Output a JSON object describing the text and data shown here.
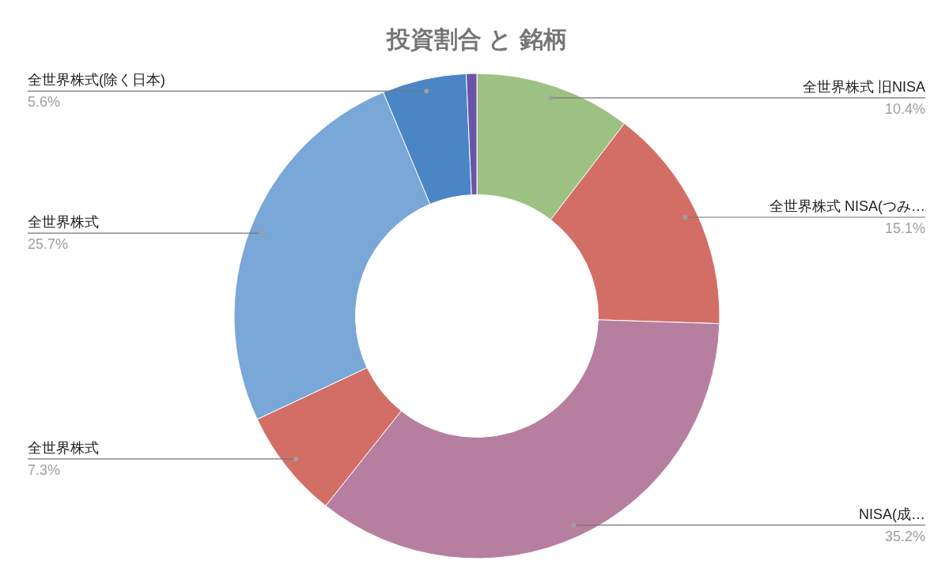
{
  "chart_data": {
    "type": "donut",
    "title": "投資割合 と 銘柄",
    "categories": [
      "全世界株式 旧NISA",
      "全世界株式 NISA(つみ…",
      "NISA(成…",
      "全世界株式",
      "全世界株式",
      "全世界株式(除く日本)",
      null
    ],
    "values": [
      10.4,
      15.1,
      35.2,
      7.3,
      25.7,
      5.6,
      0.7
    ],
    "colors": [
      "#9dc183",
      "#d36e67",
      "#b77f9f",
      "#d36e67",
      "#78a7d8",
      "#4a86c5",
      "#6a55a8"
    ],
    "value_labels": [
      "10.4%",
      "15.1%",
      "35.2%",
      "7.3%",
      "25.7%",
      "5.6%",
      null
    ]
  }
}
